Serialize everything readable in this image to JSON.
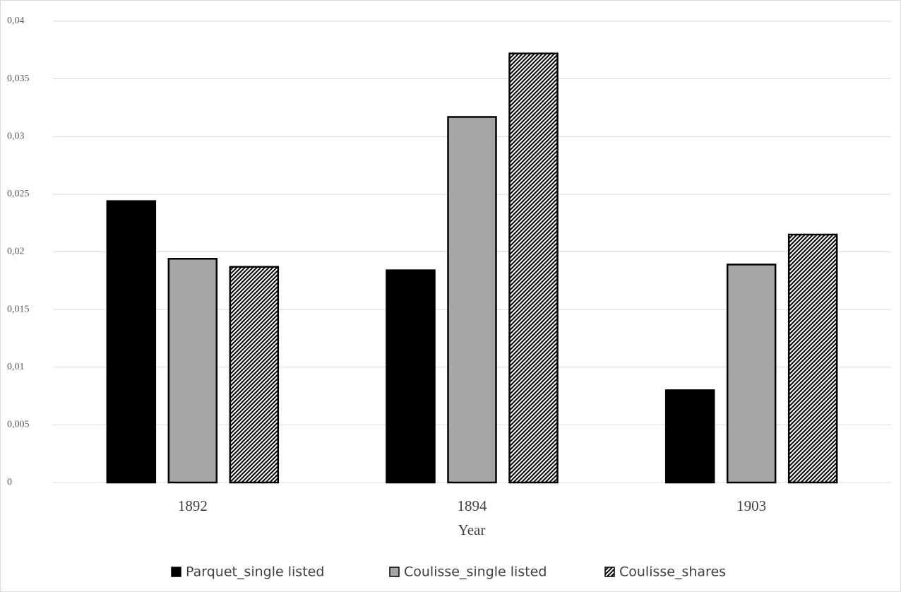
{
  "chart_data": {
    "type": "bar",
    "x_label": "Year",
    "categories": [
      "1892",
      "1894",
      "1903"
    ],
    "series": [
      {
        "name": "Parquet_single listed",
        "color": "#000000",
        "values": [
          0.0244,
          0.0184,
          0.008
        ]
      },
      {
        "name": "Coulisse_single listed",
        "color": "#a6a6a6",
        "values": [
          0.0194,
          0.0317,
          0.0189
        ]
      },
      {
        "name": "Coulisse_shares",
        "color": "#000000",
        "hatch": true,
        "values": [
          0.0187,
          0.0372,
          0.0215
        ]
      }
    ],
    "ylim": [
      0,
      0.04
    ],
    "yticks": [
      0,
      {
        "value": 0.005,
        "label": "0,005"
      },
      {
        "value": 0.01,
        "label": "0,01"
      },
      {
        "value": 0.015,
        "label": "0,015"
      },
      {
        "value": 0.02,
        "label": "0,02"
      },
      {
        "value": 0.025,
        "label": "0,025"
      },
      {
        "value": 0.03,
        "label": "0,03"
      },
      {
        "value": 0.035,
        "label": "0,035"
      },
      {
        "value": 0.04,
        "label": "0,04"
      }
    ],
    "grid": true,
    "legend": "bottom"
  }
}
